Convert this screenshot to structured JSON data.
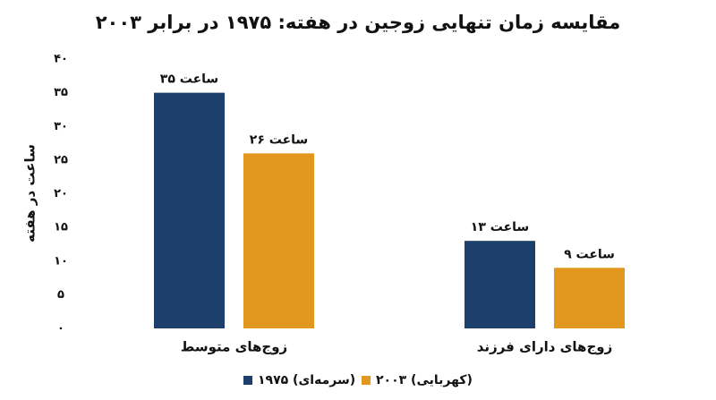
{
  "chart_data": {
    "type": "bar",
    "title": "مقایسه زمان تنهایی زوجین در هفته: ۱۹۷۵ در برابر ۲۰۰۳",
    "y_label": "ساعت در هفته",
    "categories": [
      "زوج‌های متوسط",
      "زوج‌های دارای فرزند"
    ],
    "series": [
      {
        "name": "۱۹۷۵ (سرمه‌ای)",
        "color": "#1c3f6b",
        "values": [
          35,
          13
        ],
        "value_labels": [
          "۳۵ ساعت",
          "۱۳ ساعت"
        ]
      },
      {
        "name": "۲۰۰۳ (کهربایی)",
        "color": "#e2971f",
        "values": [
          26,
          9
        ],
        "value_labels": [
          "۲۶ ساعت",
          "۹ ساعت"
        ]
      }
    ],
    "ylim": [
      0,
      40
    ],
    "yticks": [
      {
        "value": 0,
        "label": "۰"
      },
      {
        "value": 5,
        "label": "۵"
      },
      {
        "value": 10,
        "label": "۱۰"
      },
      {
        "value": 15,
        "label": "۱۵"
      },
      {
        "value": 20,
        "label": "۲۰"
      },
      {
        "value": 25,
        "label": "۲۵"
      },
      {
        "value": 30,
        "label": "۳۰"
      },
      {
        "value": 35,
        "label": "۳۵"
      },
      {
        "value": 40,
        "label": "۴۰"
      }
    ],
    "grid": false,
    "legend": "bottom"
  }
}
